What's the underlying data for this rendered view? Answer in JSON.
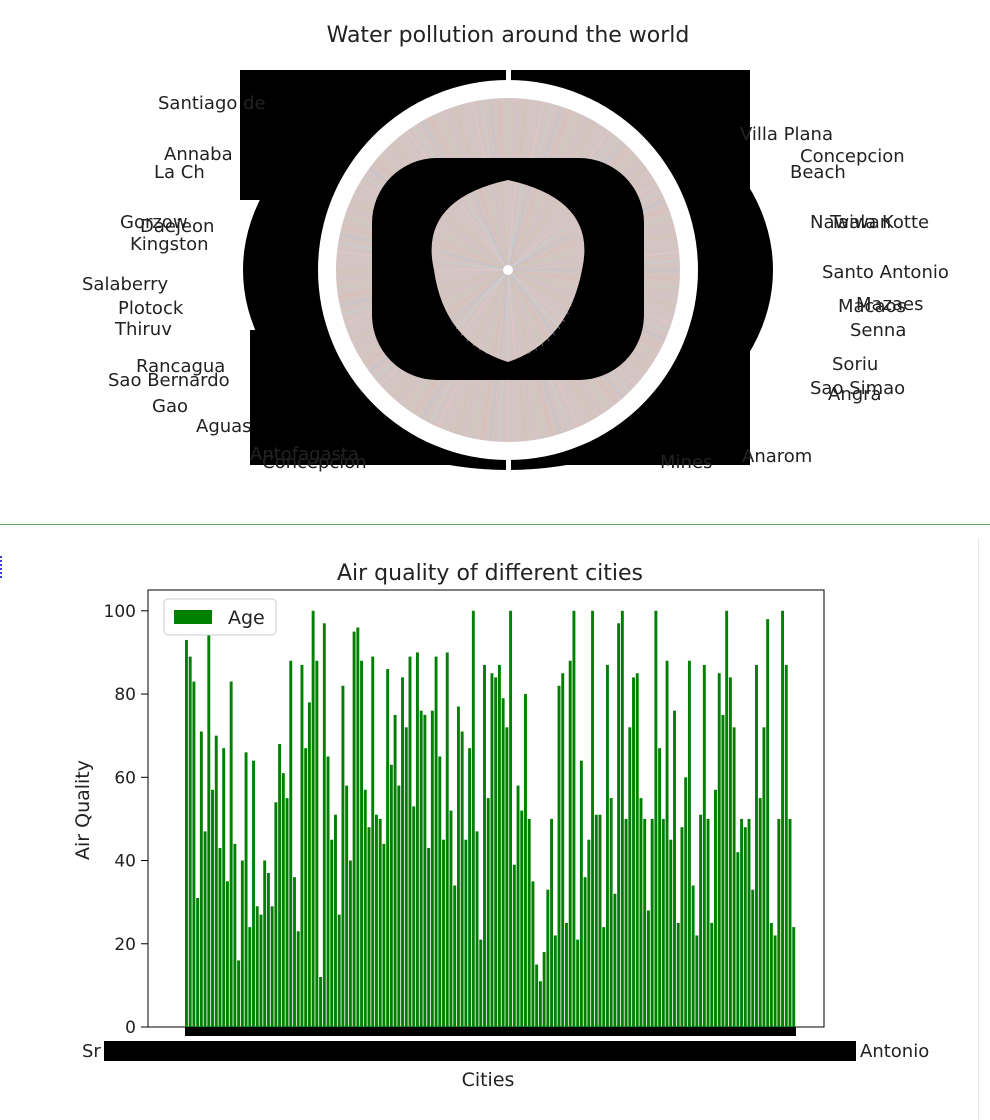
{
  "charts": {
    "pie": {
      "title": "Water pollution around the world",
      "visible_labels_left": [
        "Santiago de",
        "Annaba",
        "La Ch",
        "Gorzow",
        "Daejeon",
        "Kingston",
        "Salaberry",
        "Plotock",
        "Thiruv",
        "Rancagua",
        "Sao Bernardo",
        "Gao",
        "Aguas",
        "Antofagasta",
        "Concepcion"
      ],
      "visible_labels_right": [
        "Villa Plana",
        "Concepcion",
        "Beach",
        "Nawala Kotte",
        "Taiwan",
        "Santo Antonio",
        "Mazaes",
        "Macaos",
        "Senna",
        "Soriu",
        "Sao Simao",
        "Angra",
        "Anarom",
        "Mines"
      ]
    },
    "bar": {
      "title": "Air quality of different cities",
      "xlabel": "Cities",
      "ylabel": "Air Quality",
      "legend_label": "Age",
      "x_edge_left": "Sr",
      "x_edge_right": "Antonio",
      "bar_color": "#008000"
    }
  },
  "chart_data": [
    {
      "type": "pie",
      "title": "Water pollution around the world",
      "note_values": "hundreds of slices; values unreadable",
      "categories": [
        "Santiago de",
        "Annaba",
        "La Ch",
        "Gorzow",
        "Daejeon",
        "Kingston",
        "Salaberry",
        "Plotock",
        "Thiruv",
        "Rancagua",
        "Sao Bernardo",
        "Gao",
        "Aguas",
        "Antofagasta",
        "Concepcion",
        "Villa Plana",
        "Beach",
        "Nawala Kotte",
        "Taiwan",
        "Santo Antonio",
        "Mazaes",
        "Macaos",
        "Senna",
        "Soriu",
        "Sao Simao",
        "Angra",
        "Anarom",
        "Mines"
      ]
    },
    {
      "type": "bar",
      "title": "Air quality of different cities",
      "xlabel": "Cities",
      "ylabel": "Air Quality",
      "ylim": [
        0,
        105
      ],
      "yticks": [
        0,
        20,
        40,
        60,
        80,
        100
      ],
      "legend": "top-left",
      "series": [
        {
          "name": "Age",
          "values": [
            93,
            89,
            83,
            31,
            71,
            47,
            100,
            57,
            70,
            43,
            67,
            35,
            83,
            44,
            16,
            40,
            66,
            24,
            64,
            29,
            27,
            40,
            37,
            29,
            54,
            68,
            61,
            55,
            88,
            36,
            23,
            87,
            67,
            78,
            100,
            88,
            12,
            97,
            65,
            45,
            51,
            27,
            82,
            58,
            40,
            95,
            96,
            88,
            57,
            48,
            89,
            51,
            50,
            44,
            86,
            63,
            75,
            58,
            84,
            72,
            89,
            53,
            90,
            76,
            75,
            43,
            76,
            89,
            65,
            45,
            90,
            52,
            34,
            77,
            71,
            45,
            67,
            100,
            47,
            21,
            87,
            55,
            85,
            84,
            87,
            79,
            72,
            100,
            39,
            58,
            52,
            80,
            50,
            35,
            15,
            11,
            18,
            33,
            50,
            22,
            82,
            85,
            25,
            88,
            100,
            21,
            64,
            36,
            45,
            100,
            51,
            51,
            24,
            87,
            55,
            32,
            97,
            100,
            50,
            72,
            84,
            85,
            55,
            50,
            28,
            50,
            100,
            67,
            50,
            88,
            45,
            76,
            25,
            48,
            60,
            88,
            34,
            22,
            51,
            87,
            50,
            25,
            57,
            85,
            75,
            100,
            84,
            72,
            42,
            50,
            48,
            50,
            33,
            87,
            55,
            72,
            98,
            25,
            22,
            50,
            100,
            87,
            50,
            24
          ]
        }
      ]
    }
  ]
}
